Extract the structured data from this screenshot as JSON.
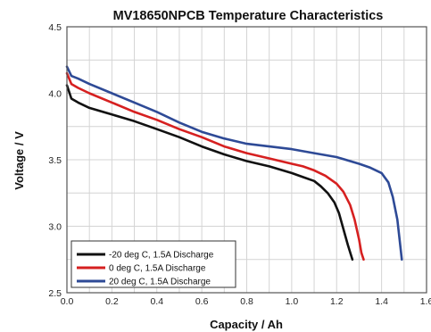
{
  "chart_data": {
    "type": "line",
    "title": "MV18650NPCB Temperature Characteristics",
    "xlabel": "Capacity / Ah",
    "ylabel": "Voltage / V",
    "xlim": [
      0,
      1.6
    ],
    "ylim": [
      2.5,
      4.5
    ],
    "x_ticks": [
      "0.0",
      "0.2",
      "0.4",
      "0.6",
      "0.8",
      "1.0",
      "1.2",
      "1.4",
      "1.6"
    ],
    "y_ticks": [
      "2.5",
      "3.0",
      "3.5",
      "4.0",
      "4.5"
    ],
    "grid": true,
    "legend_position": "bottom-left",
    "series": [
      {
        "name": "-20 deg C, 1.5A Discharge",
        "color": "#111111",
        "points": [
          [
            0.0,
            4.06
          ],
          [
            0.02,
            3.96
          ],
          [
            0.05,
            3.93
          ],
          [
            0.1,
            3.89
          ],
          [
            0.2,
            3.84
          ],
          [
            0.3,
            3.79
          ],
          [
            0.4,
            3.73
          ],
          [
            0.5,
            3.67
          ],
          [
            0.6,
            3.6
          ],
          [
            0.7,
            3.54
          ],
          [
            0.8,
            3.49
          ],
          [
            0.9,
            3.45
          ],
          [
            1.0,
            3.4
          ],
          [
            1.05,
            3.37
          ],
          [
            1.1,
            3.34
          ],
          [
            1.13,
            3.3
          ],
          [
            1.16,
            3.25
          ],
          [
            1.19,
            3.18
          ],
          [
            1.21,
            3.1
          ],
          [
            1.23,
            2.98
          ],
          [
            1.25,
            2.86
          ],
          [
            1.27,
            2.75
          ]
        ]
      },
      {
        "name": "0 deg C, 1.5A Discharge",
        "color": "#d62020",
        "points": [
          [
            0.0,
            4.15
          ],
          [
            0.02,
            4.07
          ],
          [
            0.05,
            4.04
          ],
          [
            0.1,
            4.0
          ],
          [
            0.2,
            3.93
          ],
          [
            0.3,
            3.86
          ],
          [
            0.4,
            3.8
          ],
          [
            0.5,
            3.73
          ],
          [
            0.6,
            3.67
          ],
          [
            0.7,
            3.6
          ],
          [
            0.8,
            3.55
          ],
          [
            0.9,
            3.51
          ],
          [
            1.0,
            3.47
          ],
          [
            1.05,
            3.45
          ],
          [
            1.1,
            3.42
          ],
          [
            1.15,
            3.38
          ],
          [
            1.2,
            3.32
          ],
          [
            1.23,
            3.26
          ],
          [
            1.26,
            3.16
          ],
          [
            1.28,
            3.05
          ],
          [
            1.3,
            2.9
          ],
          [
            1.31,
            2.8
          ],
          [
            1.32,
            2.75
          ]
        ]
      },
      {
        "name": "20 deg C, 1.5A Discharge",
        "color": "#2e4a96",
        "points": [
          [
            0.0,
            4.2
          ],
          [
            0.02,
            4.13
          ],
          [
            0.05,
            4.11
          ],
          [
            0.1,
            4.07
          ],
          [
            0.2,
            4.0
          ],
          [
            0.3,
            3.93
          ],
          [
            0.4,
            3.86
          ],
          [
            0.5,
            3.78
          ],
          [
            0.6,
            3.71
          ],
          [
            0.7,
            3.66
          ],
          [
            0.8,
            3.62
          ],
          [
            0.9,
            3.6
          ],
          [
            1.0,
            3.58
          ],
          [
            1.1,
            3.55
          ],
          [
            1.2,
            3.52
          ],
          [
            1.3,
            3.47
          ],
          [
            1.35,
            3.44
          ],
          [
            1.4,
            3.4
          ],
          [
            1.43,
            3.33
          ],
          [
            1.45,
            3.22
          ],
          [
            1.47,
            3.05
          ],
          [
            1.48,
            2.9
          ],
          [
            1.49,
            2.75
          ]
        ]
      }
    ]
  }
}
